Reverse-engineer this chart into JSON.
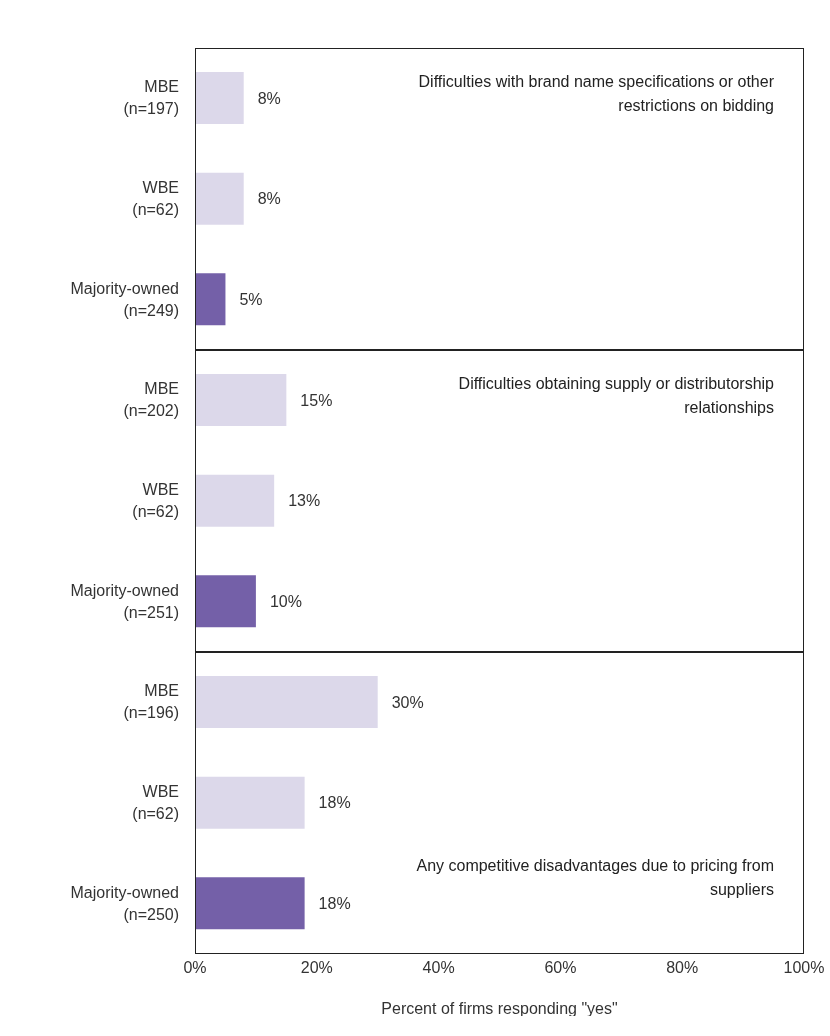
{
  "chart_data": [
    {
      "type": "bar",
      "orientation": "horizontal",
      "title": "Difficulties with brand name specifications or other restrictions on bidding",
      "categories": [
        "MBE (n=197)",
        "WBE (n=62)",
        "Majority-owned (n=249)"
      ],
      "values": [
        8,
        8,
        5
      ],
      "value_labels": [
        "8%",
        "8%",
        "5%"
      ],
      "colors": [
        "#dcd8ea",
        "#dcd8ea",
        "#7460a8"
      ],
      "xlim": [
        0,
        100
      ],
      "tick_labels": "y",
      "grid": false,
      "legend": false
    },
    {
      "type": "bar",
      "orientation": "horizontal",
      "title": "Difficulties obtaining supply or distributorship relationships",
      "categories": [
        "MBE (n=202)",
        "WBE (n=62)",
        "Majority-owned (n=251)"
      ],
      "values": [
        15,
        13,
        10
      ],
      "value_labels": [
        "15%",
        "13%",
        "10%"
      ],
      "colors": [
        "#dcd8ea",
        "#dcd8ea",
        "#7460a8"
      ],
      "xlim": [
        0,
        100
      ],
      "tick_labels": "y",
      "grid": false,
      "legend": false
    },
    {
      "type": "bar",
      "orientation": "horizontal",
      "title": "Any competitive disadvantages due to pricing from suppliers",
      "xlabel": "Percent of firms responding \"yes\"",
      "categories": [
        "MBE (n=196)",
        "WBE (n=62)",
        "Majority-owned (n=250)"
      ],
      "values": [
        30,
        18,
        18
      ],
      "value_labels": [
        "30%",
        "18%",
        "18%"
      ],
      "colors": [
        "#dcd8ea",
        "#dcd8ea",
        "#7460a8"
      ],
      "xlim": [
        0,
        100
      ],
      "xticks": [
        {
          "value": 0,
          "label": "0%"
        },
        {
          "value": 20,
          "label": "20%"
        },
        {
          "value": 40,
          "label": "40%"
        },
        {
          "value": 60,
          "label": "60%"
        },
        {
          "value": 80,
          "label": "80%"
        },
        {
          "value": 100,
          "label": "100%"
        }
      ],
      "grid": false,
      "legend": false
    }
  ]
}
